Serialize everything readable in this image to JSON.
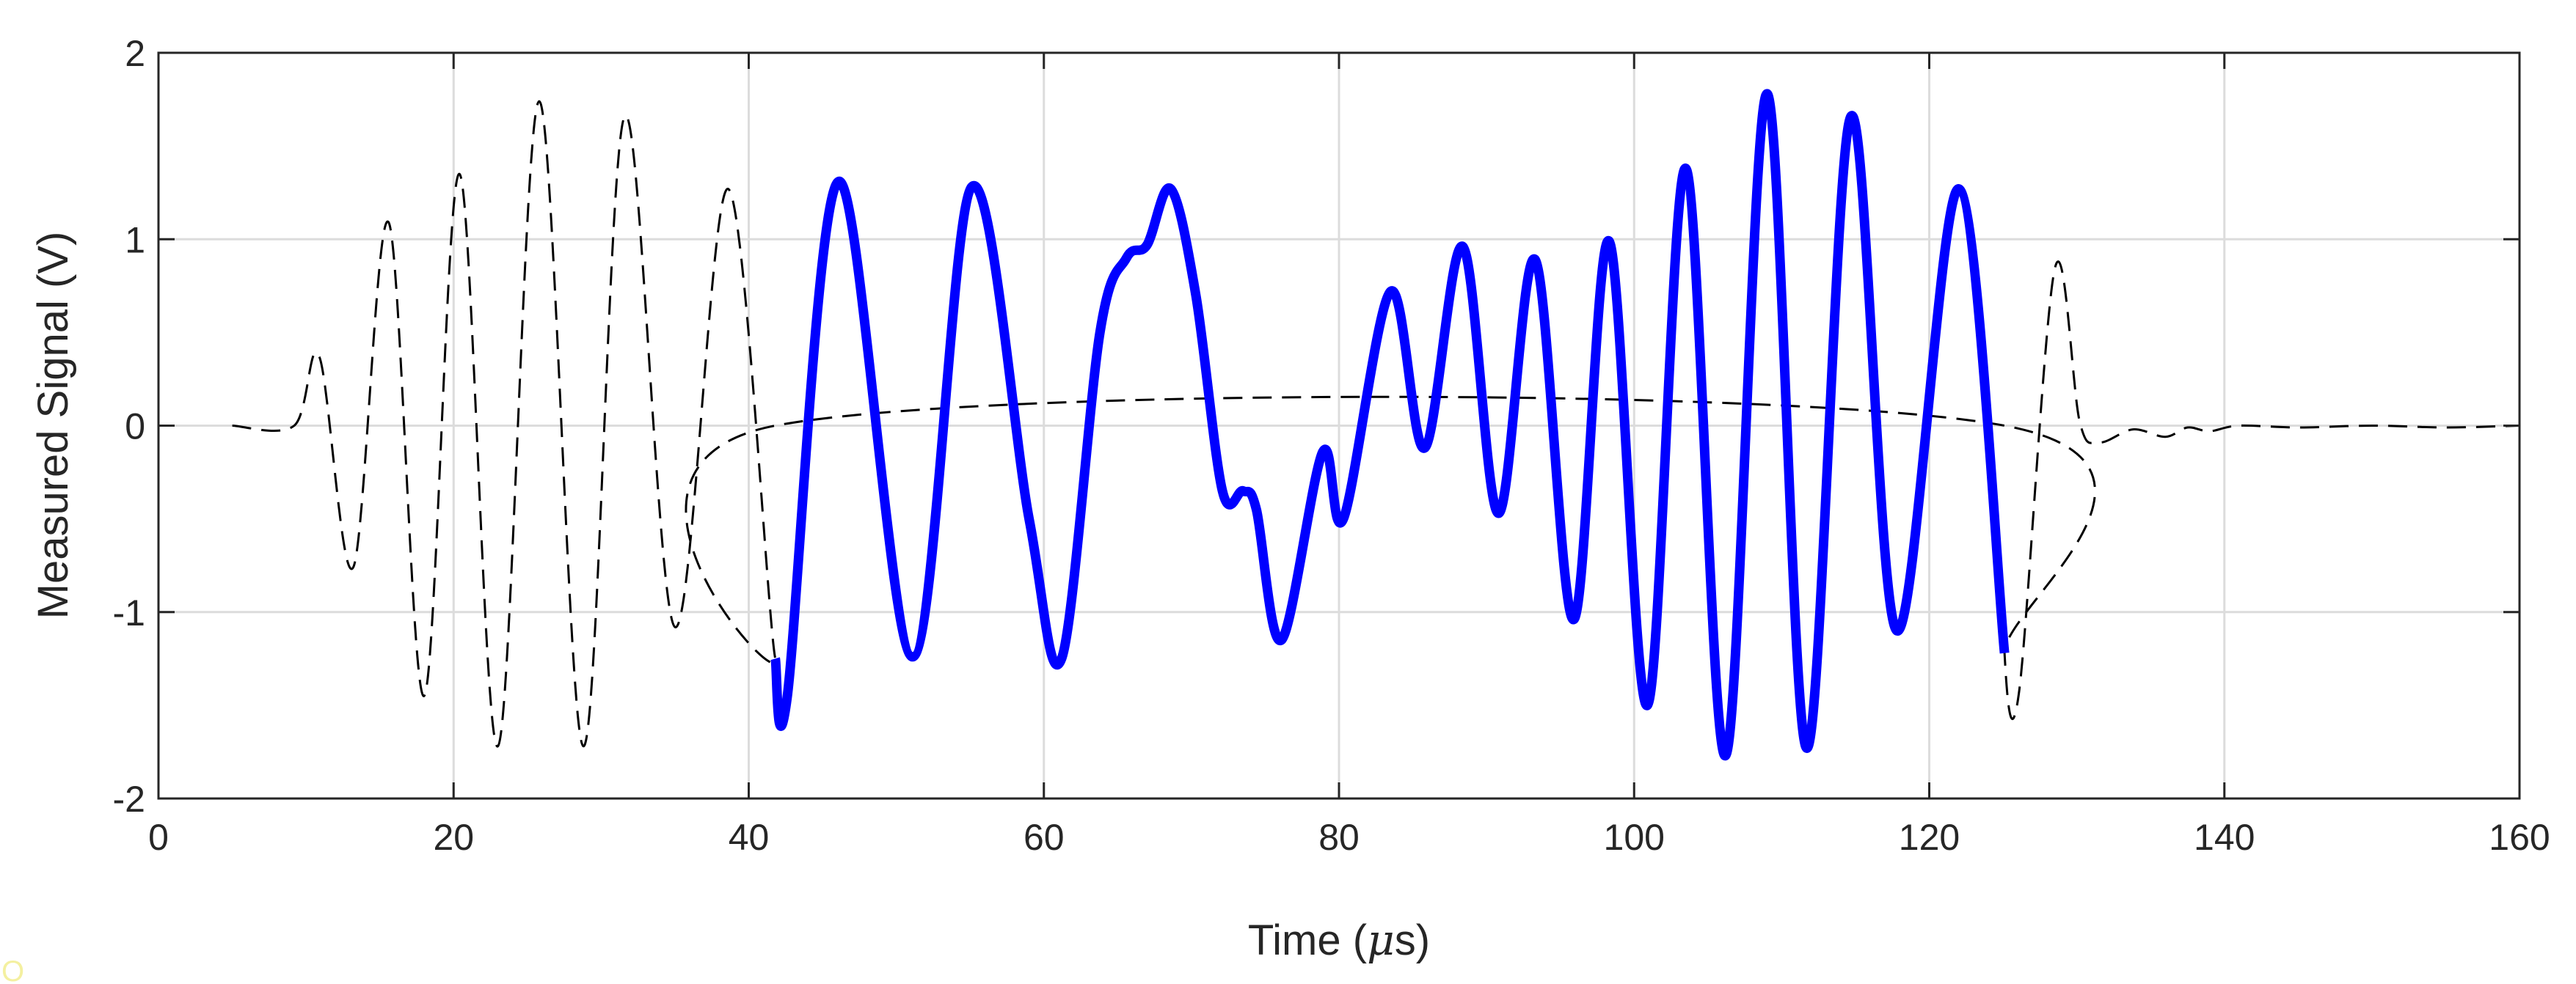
{
  "chart_data": {
    "type": "line",
    "title": "",
    "xlabel_prefix": "Time (",
    "xlabel_unit": "μ",
    "xlabel_suffix": "s)",
    "ylabel": "Measured Signal (V)",
    "xlim": [
      0,
      160
    ],
    "ylim": [
      -2,
      2
    ],
    "grid": true,
    "x_ticks": [
      0,
      20,
      40,
      60,
      80,
      100,
      120,
      140,
      160
    ],
    "x_tick_labels": [
      "0",
      "20",
      "40",
      "60",
      "80",
      "100",
      "120",
      "140",
      "160"
    ],
    "y_ticks": [
      -2,
      -1,
      0,
      1,
      2
    ],
    "y_tick_labels": [
      "-2",
      "-1",
      "0",
      "1",
      "2"
    ],
    "series": [
      {
        "style": "dashed",
        "color": "#000000",
        "points": [
          [
            5,
            0
          ],
          [
            9.2,
            0
          ],
          [
            10.9,
            0.37
          ],
          [
            13.2,
            -0.76
          ],
          [
            15.6,
            1.09
          ],
          [
            18,
            -1.45
          ],
          [
            20.4,
            1.35
          ],
          [
            23,
            -1.72
          ],
          [
            25.8,
            1.74
          ],
          [
            28.8,
            -1.72
          ],
          [
            31.6,
            1.66
          ],
          [
            35,
            -1.08
          ],
          [
            38.6,
            1.27
          ],
          [
            41.8,
            -1.25
          ],
          [
            41.8,
            0
          ],
          [
            125.1,
            0
          ],
          [
            125.1,
            -1.22
          ],
          [
            126.1,
            -1.42
          ],
          [
            128.5,
            0.84
          ],
          [
            130.2,
            0.02
          ],
          [
            131.5,
            -0.09
          ],
          [
            133.8,
            -0.02
          ],
          [
            136,
            -0.06
          ],
          [
            137.5,
            -0.01
          ],
          [
            139,
            -0.03
          ],
          [
            141,
            0
          ],
          [
            145,
            -0.01
          ],
          [
            150,
            0
          ],
          [
            155,
            -0.01
          ],
          [
            160,
            0
          ]
        ]
      },
      {
        "style": "solid",
        "color": "#0000FF",
        "points": [
          [
            41.8,
            -1.25
          ],
          [
            42.6,
            -1.46
          ],
          [
            46.1,
            1.31
          ],
          [
            51.1,
            -1.24
          ],
          [
            55.1,
            1.28
          ],
          [
            59,
            -0.5
          ],
          [
            61.2,
            -1.25
          ],
          [
            63.8,
            0.5
          ],
          [
            65.6,
            0.9
          ],
          [
            67,
            0.97
          ],
          [
            68.6,
            1.27
          ],
          [
            70.3,
            0.7
          ],
          [
            72.1,
            -0.35
          ],
          [
            73.5,
            -0.35
          ],
          [
            74.4,
            -0.45
          ],
          [
            76.1,
            -1.15
          ],
          [
            78.9,
            -0.14
          ],
          [
            80.3,
            -0.5
          ],
          [
            83.5,
            0.72
          ],
          [
            85.8,
            -0.12
          ],
          [
            88.4,
            0.96
          ],
          [
            90.8,
            -0.47
          ],
          [
            93.3,
            0.89
          ],
          [
            95.9,
            -1.04
          ],
          [
            98.3,
            0.99
          ],
          [
            100.9,
            -1.5
          ],
          [
            103.5,
            1.38
          ],
          [
            106.2,
            -1.77
          ],
          [
            109,
            1.78
          ],
          [
            111.7,
            -1.73
          ],
          [
            114.7,
            1.66
          ],
          [
            117.8,
            -1.1
          ],
          [
            122,
            1.27
          ],
          [
            125.1,
            -1.22
          ]
        ]
      }
    ]
  },
  "watermark": "O"
}
